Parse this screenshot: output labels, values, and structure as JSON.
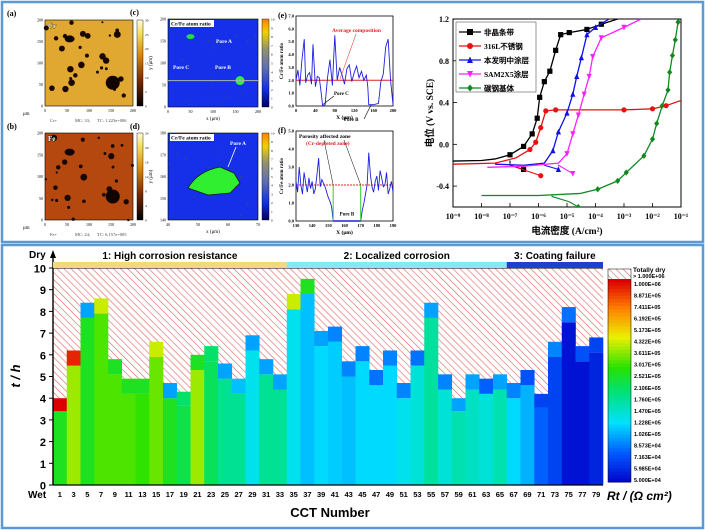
{
  "colors": {
    "frame": "#5b9bd5",
    "phase1": "#f5d77e",
    "phase2": "#86e8f6",
    "phase3": "#1f3fcf",
    "hatch": "#e04040"
  },
  "maps": {
    "a": {
      "label": "(a)",
      "element": "Cr",
      "footer_ion": "Cr+",
      "footer_mc": "MC: 33;",
      "footer_tc": "TC: 1.223e+006",
      "unit": "μm",
      "xticks": [
        "0",
        "50",
        "100",
        "150",
        "200"
      ],
      "yticks": [
        "0",
        "50",
        "100",
        "150",
        "200"
      ],
      "cbar_ticks": [
        "0",
        "5",
        "10",
        "15",
        "20",
        "25",
        "30"
      ]
    },
    "b": {
      "label": "(b)",
      "element": "Fe",
      "footer_ion": "Fe+",
      "footer_mc": "MC: 24;",
      "footer_tc": "TC: 6.157e+005",
      "unit": "μm",
      "xticks": [
        "0",
        "50",
        "100",
        "150",
        "200"
      ],
      "yticks": [
        "0",
        "50",
        "100",
        "150",
        "200"
      ],
      "cbar_ticks": [
        "0",
        "4",
        "8",
        "12",
        "16",
        "20",
        "24"
      ]
    },
    "c": {
      "label": "(c)",
      "title": "Cr/Fe atom ratio",
      "xlabel": "x (μm)",
      "ylabel": "y (μm)",
      "pores": [
        "Pore A",
        "Pore B",
        "Pore C"
      ],
      "xticks": [
        "0",
        "50",
        "100",
        "150",
        "200"
      ],
      "yticks": [
        "0",
        "50",
        "100",
        "150",
        "200"
      ],
      "cbar_ticks": [
        "0",
        "1",
        "2",
        "3",
        "4",
        "5",
        "6",
        "7",
        "8",
        "9",
        "10"
      ]
    },
    "d": {
      "label": "(d)",
      "title": "Cr/Fe atom ratio",
      "xlabel": "x (μm)",
      "ylabel": "y (μm)",
      "pores": [
        "Pore A"
      ],
      "xticks": [
        "40",
        "50",
        "60",
        "70"
      ],
      "yticks": [
        "140",
        "150",
        "160",
        "170",
        "180"
      ],
      "cbar_ticks": [
        "0",
        "1",
        "2",
        "3",
        "4",
        "5",
        "6",
        "7",
        "8",
        "9",
        "10"
      ]
    }
  },
  "chart_data": [
    {
      "id": "e",
      "type": "line",
      "label": "(e)",
      "xlabel": "X (μm)",
      "ylabel": "Cr/Fe atom ratio",
      "xlim": [
        0,
        200
      ],
      "ylim": [
        0,
        7
      ],
      "xticks": [
        0,
        40,
        80,
        120,
        160,
        200
      ],
      "yticks": [
        0,
        1,
        2,
        3,
        4,
        5,
        6,
        7
      ],
      "yticklabels": [
        "0.0",
        "1.0",
        "2.0",
        "3.0",
        "4.0",
        "5.0",
        "6.0",
        "7.0"
      ],
      "average": 2.0,
      "annotations": [
        "Average composition",
        "Pore C",
        "Pore B"
      ],
      "x": [
        0,
        4,
        8,
        12,
        17,
        20,
        24,
        28,
        32,
        35,
        40,
        44,
        48,
        52,
        55,
        60,
        65,
        70,
        75,
        80,
        85,
        90,
        95,
        100,
        105,
        110,
        115,
        120,
        125,
        130,
        135,
        140,
        145,
        148,
        150,
        160,
        170,
        175,
        180,
        185,
        190,
        195,
        200
      ],
      "y": [
        2.0,
        2.8,
        1.6,
        3.5,
        5.2,
        1.8,
        2.4,
        2.6,
        1.7,
        4.8,
        1.5,
        2.3,
        2.2,
        1.0,
        0.0,
        0.1,
        2.2,
        3.6,
        1.6,
        5.5,
        2.0,
        3.0,
        2.4,
        1.7,
        2.9,
        3.2,
        1.9,
        2.6,
        3.1,
        2.2,
        2.7,
        2.0,
        2.4,
        1.5,
        0.1,
        0.1,
        0.2,
        1.9,
        2.5,
        4.6,
        5.2,
        2.0,
        0.1
      ]
    },
    {
      "id": "f",
      "type": "line",
      "label": "(f)",
      "xlabel": "X (μm)",
      "ylabel": "Cr/Fe atom ratio",
      "xlim": [
        130,
        190
      ],
      "ylim": [
        0,
        5
      ],
      "xticks": [
        130,
        140,
        150,
        160,
        170,
        180,
        190
      ],
      "yticks": [
        0,
        1,
        2,
        3,
        4,
        5
      ],
      "yticklabels": [
        "0.0",
        "1.0",
        "2.0",
        "3.0",
        "4.0",
        "5.0"
      ],
      "average": 2.0,
      "annotations": [
        "Porosity affected zone",
        "(Cr-depleted zone)",
        "Pore B"
      ],
      "x": [
        130,
        131,
        132,
        133,
        134,
        135,
        136,
        137,
        138,
        139,
        140,
        141,
        142,
        143,
        144,
        145,
        146,
        147,
        148,
        149,
        150,
        151,
        152,
        153,
        170,
        171,
        172,
        173,
        174,
        175,
        176,
        177,
        178,
        179,
        180,
        181,
        182,
        183,
        184,
        185,
        186,
        187,
        188,
        189,
        190
      ],
      "y": [
        2.2,
        1.6,
        3.0,
        2.0,
        1.5,
        2.7,
        2.1,
        1.6,
        2.4,
        1.8,
        2.2,
        1.5,
        1.8,
        2.6,
        3.5,
        1.9,
        2.3,
        2.1,
        1.9,
        1.6,
        1.3,
        1.1,
        0.8,
        0.0,
        0.0,
        0.6,
        1.0,
        1.5,
        2.0,
        3.8,
        2.6,
        1.9,
        1.6,
        2.2,
        2.5,
        1.7,
        2.8,
        2.4,
        1.9,
        2.0,
        2.7,
        1.5,
        1.8,
        2.2,
        1.6
      ]
    },
    {
      "id": "polarization",
      "type": "line",
      "xlabel": "电流密度 (A/cm²)",
      "ylabel": "电位 (V vs. SCE)",
      "xscale": "log",
      "xlim": [
        1e-09,
        0.1
      ],
      "ylim": [
        -0.6,
        1.2
      ],
      "xticklabels": [
        "10⁻⁹",
        "10⁻⁸",
        "10⁻⁷",
        "10⁻⁶",
        "10⁻⁵",
        "10⁻⁴",
        "10⁻³",
        "10⁻²",
        "10⁻¹"
      ],
      "yticks": [
        -0.4,
        0.0,
        0.4,
        0.8,
        1.2
      ],
      "yticklabels": [
        "-0.4",
        "0.0",
        "0.4",
        "0.8",
        "1.2"
      ],
      "legend_position": "top-left",
      "series": [
        {
          "name": "非晶条带",
          "color": "#000000",
          "marker": "square",
          "x": [
            1e-09,
            1e-08,
            3e-08,
            1e-07,
            3e-07,
            6e-07,
            9e-07,
            1.1e-06,
            1.6e-06,
            2.5e-06,
            4e-06,
            6e-06,
            1.2e-05,
            5e-05,
            0.00016,
            0.0006
          ],
          "y": [
            -0.16,
            -0.155,
            -0.14,
            -0.1,
            -0.02,
            0.1,
            0.25,
            0.45,
            0.6,
            0.7,
            0.9,
            1.05,
            1.07,
            1.1,
            1.15,
            1.2
          ],
          "cathodic_x": [
            1e-07,
            3e-07
          ],
          "cathodic_y": [
            -0.2,
            -0.24
          ]
        },
        {
          "name": "316L不锈钢",
          "color": "#e81010",
          "marker": "circle",
          "x": [
            1e-09,
            3e-08,
            1.6e-07,
            5e-07,
            8e-07,
            1.2e-06,
            1.8e-06,
            4e-06,
            0.001,
            0.01,
            0.03,
            0.1
          ],
          "y": [
            -0.19,
            -0.18,
            -0.13,
            -0.05,
            0.02,
            0.16,
            0.32,
            0.33,
            0.33,
            0.34,
            0.37,
            0.42
          ],
          "cathodic_x": [
            1e-07,
            1.2e-06
          ],
          "cathodic_y": [
            -0.2,
            -0.3
          ]
        },
        {
          "name": "本发明中涂层",
          "color": "#1010e8",
          "marker": "triangle-up",
          "x": [
            3e-08,
            3e-07,
            1.6e-06,
            3.2e-06,
            5e-06,
            1e-05,
            1.6e-05,
            2.2e-05,
            3.2e-05,
            5e-05,
            0.0001,
            0.0003
          ],
          "y": [
            -0.19,
            -0.2,
            -0.18,
            -0.06,
            0.12,
            0.3,
            0.48,
            0.65,
            0.83,
            1.05,
            1.12,
            1.2
          ],
          "cathodic_x": [
            1.6e-06,
            5e-06
          ],
          "cathodic_y": [
            -0.2,
            -0.24
          ]
        },
        {
          "name": "SAM2X5涂层",
          "color": "#ff20ff",
          "marker": "triangle-down",
          "x": [
            1.6e-08,
            3e-07,
            5e-06,
            1e-05,
            1.6e-05,
            2.5e-05,
            4e-05,
            6e-05,
            8e-05,
            0.00016,
            0.001,
            0.004
          ],
          "y": [
            -0.22,
            -0.21,
            -0.18,
            -0.09,
            0.1,
            0.28,
            0.48,
            0.65,
            0.84,
            1.02,
            1.12,
            1.2
          ],
          "cathodic_x": [
            5e-06,
            1.6e-05
          ],
          "cathodic_y": [
            -0.2,
            -0.28
          ]
        },
        {
          "name": "碳钢基体",
          "color": "#108a20",
          "marker": "diamond",
          "x": [
            1e-08,
            1e-06,
            3e-05,
            0.00012,
            0.0006,
            0.0012,
            0.005,
            0.01,
            0.014,
            0.022,
            0.035,
            0.04,
            0.05,
            0.063,
            0.079,
            0.089
          ],
          "y": [
            -0.49,
            -0.49,
            -0.47,
            -0.43,
            -0.35,
            -0.27,
            -0.11,
            0.05,
            0.2,
            0.37,
            0.52,
            0.69,
            0.85,
            1.0,
            1.17,
            1.2
          ],
          "cathodic_x": [
            3e-06,
            1.2e-05,
            2.5e-05
          ],
          "cathodic_y": [
            -0.5,
            -0.55,
            -0.6
          ]
        }
      ]
    },
    {
      "id": "cct",
      "type": "heatmap",
      "xlabel": "CCT Number",
      "ylabel": "t / h",
      "ylim": [
        0,
        10
      ],
      "yticks": [
        0,
        1,
        2,
        3,
        4,
        5,
        6,
        7,
        8,
        9,
        10
      ],
      "y_bottom_label": "Wet",
      "y_top_label": "Dry",
      "categories": [
        "1",
        "3",
        "5",
        "7",
        "9",
        "11",
        "13",
        "15",
        "17",
        "19",
        "21",
        "23",
        "25",
        "27",
        "29",
        "31",
        "33",
        "35",
        "37",
        "39",
        "41",
        "43",
        "45",
        "47",
        "49",
        "51",
        "53",
        "55",
        "57",
        "59",
        "61",
        "63",
        "65",
        "67",
        "69",
        "71",
        "73",
        "75",
        "77",
        "79"
      ],
      "wet_hours": [
        4.0,
        6.2,
        8.4,
        8.6,
        5.8,
        4.9,
        4.9,
        6.6,
        4.7,
        4.3,
        6.0,
        6.4,
        5.6,
        4.9,
        6.9,
        5.8,
        5.1,
        8.8,
        9.5,
        7.1,
        7.3,
        5.7,
        6.4,
        5.3,
        6.2,
        4.7,
        6.2,
        8.4,
        5.1,
        4.0,
        5.1,
        4.9,
        5.1,
        4.7,
        5.3,
        4.2,
        6.6,
        8.2,
        6.4,
        6.8
      ],
      "rt_main": [
        250000,
        360000,
        250000,
        300000,
        300000,
        300000,
        280000,
        320000,
        250000,
        220000,
        360000,
        210000,
        176000,
        176000,
        130000,
        176000,
        176000,
        130000,
        110000,
        120000,
        115000,
        110000,
        120000,
        120000,
        120000,
        130000,
        140000,
        170000,
        140000,
        160000,
        150000,
        140000,
        160000,
        120000,
        105000,
        80000,
        70000,
        55000,
        55000,
        60000
      ],
      "rt_top": [
        1000000,
        887100,
        100000,
        400000,
        250000,
        250000,
        250000,
        400000,
        100000,
        200000,
        250000,
        200000,
        100000,
        110000,
        100000,
        100000,
        100000,
        400000,
        250000,
        100000,
        90000,
        90000,
        90000,
        85000,
        90000,
        90000,
        85000,
        100000,
        90000,
        100000,
        100000,
        80000,
        100000,
        90000,
        75000,
        70000,
        90000,
        85000,
        75000,
        70000
      ],
      "phases": [
        {
          "label": "1: High corrosion resistance",
          "from": "1",
          "to": "33"
        },
        {
          "label": "2: Localized corrosion",
          "from": "35",
          "to": "65"
        },
        {
          "label": "3: Coating failure",
          "from": "67",
          "to": "79"
        }
      ],
      "colorbar": {
        "title": "Rt / (Ω cm²)",
        "dry_label": "Totally dry",
        "dry_threshold": "> 1.000E+06",
        "scale": "log",
        "range": [
          50000,
          1000000
        ],
        "tick_labels": [
          "1.000E+06",
          "8.871E+05",
          "7.411E+05",
          "6.192E+05",
          "5.173E+05",
          "4.322E+05",
          "3.611E+05",
          "3.017E+05",
          "2.521E+05",
          "2.106E+05",
          "1.760E+05",
          "1.470E+05",
          "1.228E+05",
          "1.026E+05",
          "8.573E+04",
          "7.163E+04",
          "5.985E+04",
          "5.000E+04"
        ]
      }
    }
  ]
}
